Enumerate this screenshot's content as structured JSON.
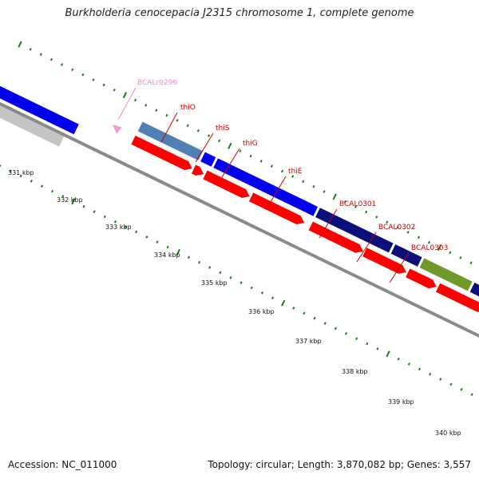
{
  "title": "Burkholderia cenocepacia J2315 chromosome 1, complete genome",
  "footer": {
    "accession": "Accession: NC_011000",
    "summary": "Topology: circular; Length: 3,870,082 bp; Genes: 3,557"
  },
  "colors": {
    "backbone": "#8a8a8a",
    "tick": "#1f7a1f",
    "reverse_cds": "#ff0000",
    "gene_label_red": "#cc0000",
    "gene_label_pink": "#f08ac8",
    "gene_light_blue": "#4f7fb4",
    "gene_blue": "#0000ee",
    "gene_navy": "#0b0f7a",
    "gene_green": "#6f9a2a",
    "gene_gray": "#c4c4c4",
    "gene_pink": "#f29ad6"
  },
  "scale_labels": [
    "331 kbp",
    "332 kbp",
    "333 kbp",
    "334 kbp",
    "335 kbp",
    "336 kbp",
    "337 kbp",
    "338 kbp",
    "339 kbp",
    "340 kbp"
  ],
  "gene_labels": [
    {
      "text": "BCALr0296",
      "color": "pink"
    },
    {
      "text": "thiO",
      "color": "red"
    },
    {
      "text": "thiS",
      "color": "red"
    },
    {
      "text": "thiG",
      "color": "red"
    },
    {
      "text": "thiE",
      "color": "red"
    },
    {
      "text": "BCAL0301",
      "color": "red"
    },
    {
      "text": "BCAL0302",
      "color": "red"
    },
    {
      "text": "BCAL0303",
      "color": "red"
    }
  ]
}
